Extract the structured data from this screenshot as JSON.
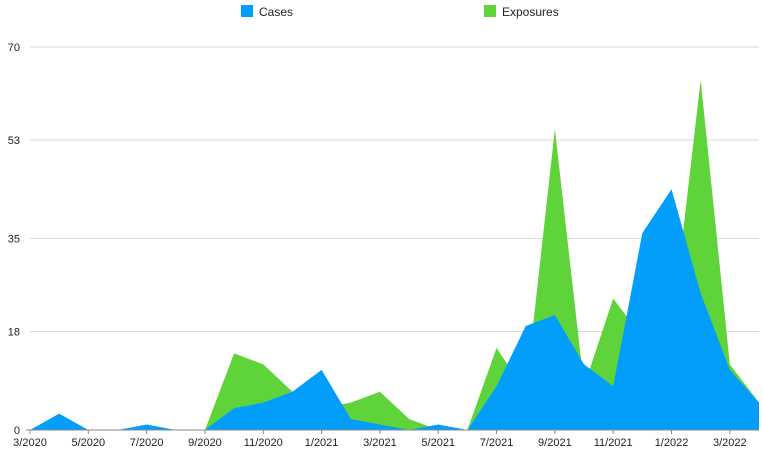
{
  "chart_data": {
    "type": "area",
    "title": "",
    "xlabel": "",
    "ylabel": "",
    "x": [
      "3/2020",
      "4/2020",
      "5/2020",
      "6/2020",
      "7/2020",
      "8/2020",
      "9/2020",
      "10/2020",
      "11/2020",
      "12/2020",
      "1/2021",
      "2/2021",
      "3/2021",
      "4/2021",
      "5/2021",
      "6/2021",
      "7/2021",
      "8/2021",
      "9/2021",
      "10/2021",
      "11/2021",
      "12/2021",
      "1/2022",
      "2/2022",
      "3/2022",
      "4/2022"
    ],
    "x_tick_labels": [
      "3/2020",
      "5/2020",
      "7/2020",
      "9/2020",
      "11/2020",
      "1/2021",
      "3/2021",
      "5/2021",
      "7/2021",
      "9/2021",
      "11/2021",
      "1/2022",
      "3/2022"
    ],
    "y_ticks": [
      0,
      18,
      35,
      53,
      70
    ],
    "ylim": [
      0,
      70
    ],
    "grid": true,
    "legend_position": "top-center",
    "series": [
      {
        "name": "Exposures",
        "color": "#5fd33a",
        "values": [
          0,
          2,
          0,
          0,
          0,
          0,
          0,
          14,
          12,
          7,
          4,
          5,
          7,
          2,
          0,
          0,
          15,
          7,
          55,
          8,
          24,
          17,
          18,
          64,
          12,
          5
        ]
      },
      {
        "name": "Cases",
        "color": "#039dfb",
        "values": [
          0,
          3,
          0,
          0,
          1,
          0,
          0,
          4,
          5,
          7,
          11,
          2,
          1,
          0,
          1,
          0,
          8,
          19,
          21,
          12,
          8,
          36,
          44,
          25,
          11,
          5
        ]
      }
    ]
  }
}
